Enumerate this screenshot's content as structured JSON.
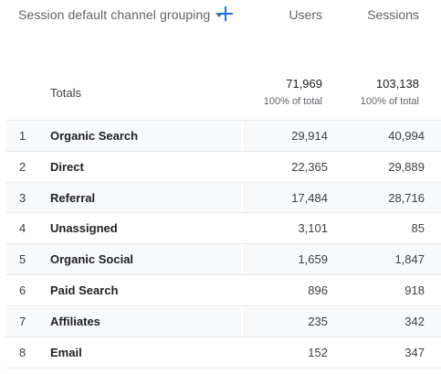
{
  "header": {
    "dimension_label": "Session default channel grouping",
    "columns": {
      "users": "Users",
      "sessions": "Sessions"
    }
  },
  "totals": {
    "label": "Totals",
    "users": "71,969",
    "users_pct": "100% of total",
    "sessions": "103,138",
    "sessions_pct": "100% of total"
  },
  "rows": [
    {
      "idx": "1",
      "name": "Organic Search",
      "users": "29,914",
      "sessions": "40,994"
    },
    {
      "idx": "2",
      "name": "Direct",
      "users": "22,365",
      "sessions": "29,889"
    },
    {
      "idx": "3",
      "name": "Referral",
      "users": "17,484",
      "sessions": "28,716"
    },
    {
      "idx": "4",
      "name": "Unassigned",
      "users": "3,101",
      "sessions": "85"
    },
    {
      "idx": "5",
      "name": "Organic Social",
      "users": "1,659",
      "sessions": "1,847"
    },
    {
      "idx": "6",
      "name": "Paid Search",
      "users": "896",
      "sessions": "918"
    },
    {
      "idx": "7",
      "name": "Affiliates",
      "users": "235",
      "sessions": "342"
    },
    {
      "idx": "8",
      "name": "Email",
      "users": "152",
      "sessions": "347"
    }
  ],
  "colors": {
    "accent": "#1a73e8",
    "row_shade": "#f8f9fa"
  }
}
